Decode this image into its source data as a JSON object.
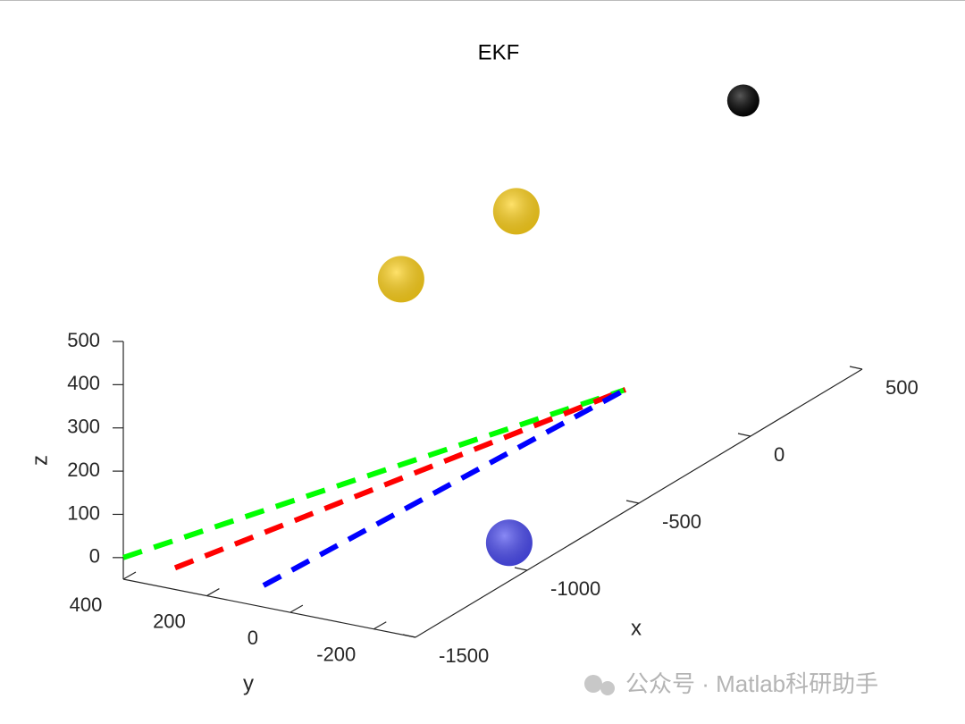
{
  "chart_data": {
    "type": "line3d",
    "title": "EKF",
    "xlabel": "x",
    "ylabel": "y",
    "zlabel": "z",
    "xlim": [
      -1500,
      500
    ],
    "ylim": [
      -300,
      400
    ],
    "zlim": [
      -50,
      500
    ],
    "xticks": [
      -1500,
      -1000,
      -500,
      0,
      500
    ],
    "yticks": [
      -200,
      0,
      200,
      400
    ],
    "zticks": [
      0,
      100,
      200,
      300,
      400,
      500
    ],
    "series": [
      {
        "color": "#00ff00",
        "x": [
          -1500,
          0
        ],
        "y": [
          400,
          0
        ],
        "z": [
          0,
          0
        ]
      },
      {
        "color": "#ff0000",
        "x": [
          -1500,
          0
        ],
        "y": [
          276,
          0
        ],
        "z": [
          0,
          0
        ]
      },
      {
        "color": "#0000ff",
        "x": [
          -1500,
          0
        ],
        "y": [
          64,
          0
        ],
        "z": [
          0,
          0
        ]
      }
    ],
    "points": [
      {
        "color": "#000000",
        "x": 528,
        "y": 0,
        "z": 505,
        "size": 18
      },
      {
        "color": "#ffd21a",
        "x": -488,
        "y": 0,
        "z": 564,
        "size": 26
      },
      {
        "color": "#ffd21a",
        "x": -1004,
        "y": 0,
        "z": 567,
        "size": 26
      },
      {
        "color": "#4a4af0",
        "x": -987,
        "y": -250,
        "z": 0,
        "size": 26
      }
    ]
  },
  "watermark": "公众号 · Matlab科研助手"
}
